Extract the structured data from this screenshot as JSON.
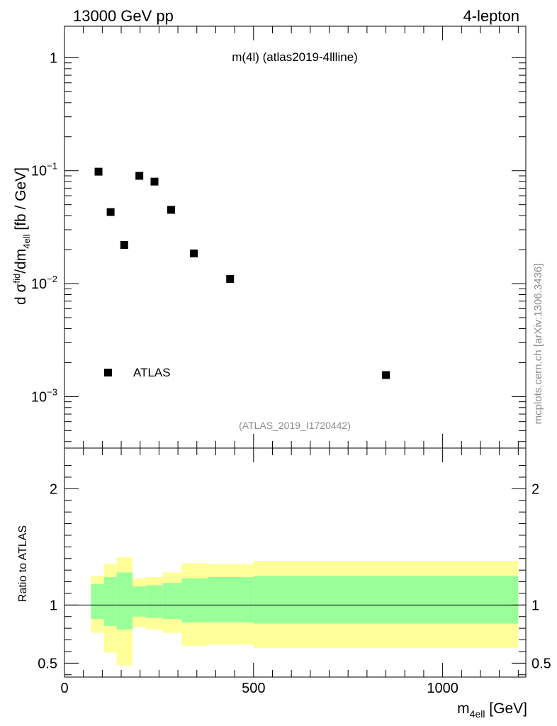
{
  "header": {
    "left": "13000 GeV pp",
    "right": "4-lepton"
  },
  "side_label": "mcplots.cern.ch [arXiv:1306.3436]",
  "chart_data": [
    {
      "type": "scatter",
      "title": "m(4l) (atlas2019-4llline)",
      "annotation": "(ATLAS_2019_I1720442)",
      "ylabel": {
        "base": "d σ",
        "sup": "fid",
        "mid": "/dm",
        "sub": "4ell",
        "tail": " [fb / GeV]"
      },
      "y_scale": "log",
      "xlim": [
        0,
        1220
      ],
      "ylim": [
        0.00035,
        1.9
      ],
      "y_tick_labels": [
        {
          "value": 1,
          "base": "1",
          "exp": ""
        },
        {
          "value": 0.1,
          "base": "10",
          "exp": "−1"
        },
        {
          "value": 0.01,
          "base": "10",
          "exp": "−2"
        },
        {
          "value": 0.001,
          "base": "10",
          "exp": "−3"
        }
      ],
      "legend": {
        "label": "ATLAS",
        "placement": "bottom-left"
      },
      "series": [
        {
          "name": "ATLAS",
          "color": "#000000",
          "x": [
            90,
            122,
            158,
            198,
            238,
            282,
            342,
            438,
            850
          ],
          "y": [
            0.098,
            0.043,
            0.022,
            0.09,
            0.08,
            0.045,
            0.0185,
            0.011,
            0.00155
          ]
        }
      ]
    },
    {
      "type": "area",
      "ylabel": "Ratio to ATLAS",
      "xlabel": {
        "base": "m",
        "sub": "4ell",
        "tail": " [GeV]"
      },
      "xlim": [
        0,
        1220
      ],
      "ylim": [
        0.38,
        2.35
      ],
      "x_tick_labels": [
        "0",
        "500",
        "1000"
      ],
      "y_tick_labels": [
        "0.5",
        "1",
        "2"
      ],
      "reference_line": 1,
      "bins": [
        {
          "lo": 70,
          "hi": 105,
          "inner": [
            0.88,
            1.18
          ],
          "outer": [
            0.76,
            1.25
          ]
        },
        {
          "lo": 105,
          "hi": 138,
          "inner": [
            0.82,
            1.24
          ],
          "outer": [
            0.59,
            1.35
          ]
        },
        {
          "lo": 138,
          "hi": 180,
          "inner": [
            0.79,
            1.28
          ],
          "outer": [
            0.48,
            1.41
          ]
        },
        {
          "lo": 180,
          "hi": 215,
          "inner": [
            0.9,
            1.16
          ],
          "outer": [
            0.81,
            1.23
          ]
        },
        {
          "lo": 215,
          "hi": 260,
          "inner": [
            0.89,
            1.17
          ],
          "outer": [
            0.79,
            1.24
          ]
        },
        {
          "lo": 260,
          "hi": 310,
          "inner": [
            0.88,
            1.19
          ],
          "outer": [
            0.76,
            1.28
          ]
        },
        {
          "lo": 310,
          "hi": 380,
          "inner": [
            0.85,
            1.23
          ],
          "outer": [
            0.65,
            1.36
          ]
        },
        {
          "lo": 380,
          "hi": 500,
          "inner": [
            0.85,
            1.24
          ],
          "outer": [
            0.66,
            1.35
          ]
        },
        {
          "lo": 500,
          "hi": 1200,
          "inner": [
            0.84,
            1.25
          ],
          "outer": [
            0.63,
            1.38
          ]
        }
      ],
      "band_colors": {
        "inner": "#99ff99",
        "outer": "#ffff99"
      }
    }
  ]
}
